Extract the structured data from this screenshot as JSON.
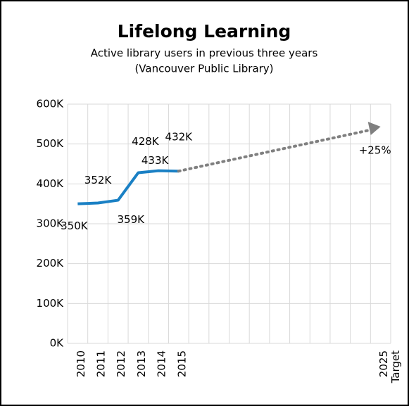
{
  "chart_data": {
    "type": "line",
    "title": "Lifelong Learning",
    "subtitle": [
      "Active library users in previous three years",
      "(Vancouver Public Library)"
    ],
    "categories": [
      "2010",
      "2011",
      "2012",
      "2013",
      "2014",
      "2015",
      null,
      null,
      null,
      null,
      null,
      null,
      null,
      null,
      null,
      "2025"
    ],
    "target_label": "Target",
    "values": [
      350000,
      352000,
      359000,
      428000,
      433000,
      432000,
      null,
      null,
      null,
      null,
      null,
      null,
      null,
      null,
      null,
      null
    ],
    "value_labels": [
      "350K",
      "352K",
      "359K",
      "428K",
      "433K",
      "432K",
      null,
      null,
      null,
      null,
      null,
      null,
      null,
      null,
      null,
      null
    ],
    "color": "#1a80c4",
    "target": {
      "value": 540000,
      "label": "+25%",
      "color": "#808080"
    },
    "ylim": [
      0,
      600000
    ],
    "yticks": [
      {
        "value": 0,
        "label": "0K"
      },
      {
        "value": 100000,
        "label": "100K"
      },
      {
        "value": 200000,
        "label": "200K"
      },
      {
        "value": 300000,
        "label": "300K"
      },
      {
        "value": 400000,
        "label": "400K"
      },
      {
        "value": 500000,
        "label": "500K"
      },
      {
        "value": 600000,
        "label": "600K"
      }
    ],
    "grid": true
  }
}
